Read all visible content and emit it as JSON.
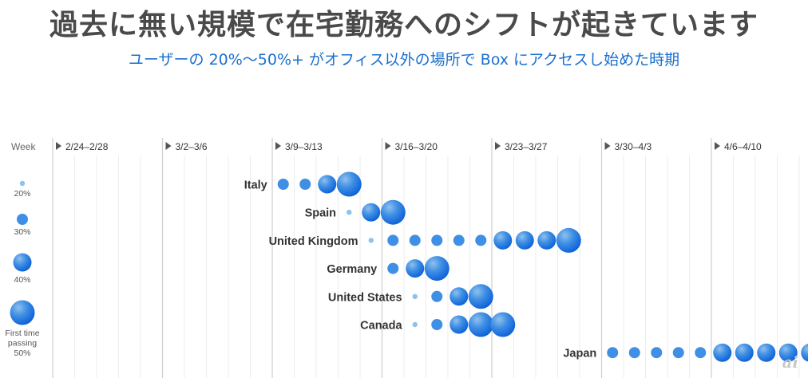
{
  "title": "過去に無い規模で在宅勤務へのシフトが起きています",
  "subtitle": "ユーザーの 20%〜50%+ がオフィス以外の場所で Box にアクセスし始めた時期",
  "watermark": "ai",
  "chart_data": {
    "type": "scatter",
    "axis_label": "Week",
    "weeks": [
      "2/24–2/28",
      "3/2–3/6",
      "3/9–3/13",
      "3/16–3/20",
      "3/23–3/27",
      "3/30–4/3",
      "4/6–4/10"
    ],
    "grid": true,
    "legend_position": "left",
    "legend": [
      {
        "value": 20,
        "lines": [
          "20%"
        ]
      },
      {
        "value": 30,
        "lines": [
          "30%"
        ]
      },
      {
        "value": 40,
        "lines": [
          "40%"
        ]
      },
      {
        "value": 50,
        "lines": [
          "First time",
          "passing",
          "50%"
        ]
      }
    ],
    "colors": {
      "light": "#8fc0ee",
      "mid": "#3f8fe4",
      "dark": "#0a5fd8",
      "grid": "#dddddd",
      "axis": "#9a9a9a",
      "text": "#333333"
    },
    "series": [
      {
        "name": "Italy",
        "points": [
          {
            "day": 10,
            "value": 30
          },
          {
            "day": 11,
            "value": 30
          },
          {
            "day": 12,
            "value": 40
          },
          {
            "day": 13,
            "value": 50
          }
        ]
      },
      {
        "name": "Spain",
        "points": [
          {
            "day": 13,
            "value": 20
          },
          {
            "day": 14,
            "value": 40
          },
          {
            "day": 15,
            "value": 50
          }
        ]
      },
      {
        "name": "United Kingdom",
        "points": [
          {
            "day": 14,
            "value": 20
          },
          {
            "day": 15,
            "value": 30
          },
          {
            "day": 16,
            "value": 30
          },
          {
            "day": 17,
            "value": 30
          },
          {
            "day": 18,
            "value": 30
          },
          {
            "day": 19,
            "value": 30
          },
          {
            "day": 20,
            "value": 40
          },
          {
            "day": 21,
            "value": 40
          },
          {
            "day": 22,
            "value": 40
          },
          {
            "day": 23,
            "value": 50
          }
        ]
      },
      {
        "name": "Germany",
        "points": [
          {
            "day": 15,
            "value": 30
          },
          {
            "day": 16,
            "value": 40
          },
          {
            "day": 17,
            "value": 50
          }
        ]
      },
      {
        "name": "United States",
        "points": [
          {
            "day": 16,
            "value": 20
          },
          {
            "day": 17,
            "value": 30
          },
          {
            "day": 18,
            "value": 40
          },
          {
            "day": 19,
            "value": 50
          }
        ]
      },
      {
        "name": "Canada",
        "points": [
          {
            "day": 16,
            "value": 20
          },
          {
            "day": 17,
            "value": 30
          },
          {
            "day": 18,
            "value": 40
          },
          {
            "day": 19,
            "value": 50
          },
          {
            "day": 20,
            "value": 50
          }
        ]
      },
      {
        "name": "Japan",
        "points": [
          {
            "day": 25,
            "value": 30
          },
          {
            "day": 26,
            "value": 30
          },
          {
            "day": 27,
            "value": 30
          },
          {
            "day": 28,
            "value": 30
          },
          {
            "day": 29,
            "value": 30
          },
          {
            "day": 30,
            "value": 40
          },
          {
            "day": 31,
            "value": 40
          },
          {
            "day": 32,
            "value": 40
          },
          {
            "day": 33,
            "value": 40
          },
          {
            "day": 34,
            "value": 40
          }
        ]
      }
    ]
  }
}
